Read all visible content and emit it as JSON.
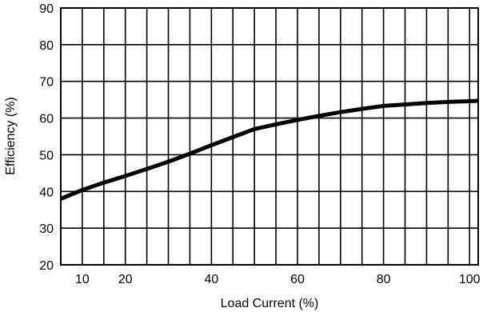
{
  "chart_data": {
    "type": "line",
    "title": "",
    "xlabel": "Load Current (%)",
    "ylabel": "Efficiency (%)",
    "xlim": [
      5,
      102
    ],
    "ylim": [
      20,
      90
    ],
    "x_ticks": [
      10,
      20,
      40,
      60,
      80,
      100
    ],
    "y_ticks": [
      20,
      30,
      40,
      50,
      60,
      70,
      80,
      90
    ],
    "grid": true,
    "line_color": "#000000",
    "series": [
      {
        "x": [
          5,
          10,
          15,
          20,
          25,
          30,
          35,
          40,
          45,
          50,
          55,
          60,
          65,
          70,
          75,
          80,
          85,
          90,
          95,
          100,
          102
        ],
        "y": [
          38,
          40.4,
          42.4,
          44.2,
          46.1,
          48.1,
          50.3,
          52.6,
          54.8,
          57,
          58.3,
          59.5,
          60.6,
          61.6,
          62.5,
          63.3,
          63.7,
          64.1,
          64.4,
          64.6,
          64.7
        ]
      }
    ]
  }
}
